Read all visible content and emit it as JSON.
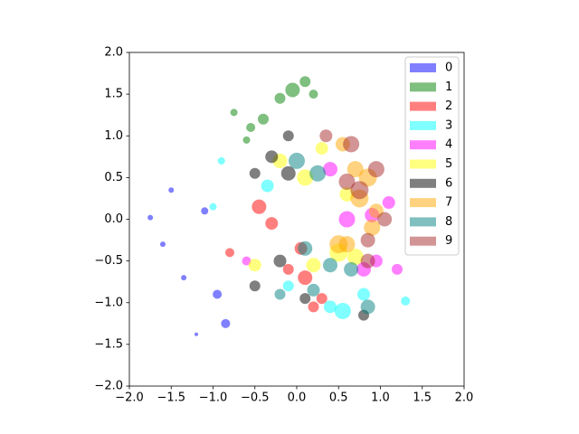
{
  "chart_data": {
    "type": "scatter",
    "xlim": [
      -2,
      2
    ],
    "ylim": [
      -2,
      2
    ],
    "xticks": [
      {
        "value": -2,
        "label": "−2.0"
      },
      {
        "value": -1.5,
        "label": "−1.5"
      },
      {
        "value": -1,
        "label": "−1.0"
      },
      {
        "value": -0.5,
        "label": "−0.5"
      },
      {
        "value": 0,
        "label": "0.0"
      },
      {
        "value": 0.5,
        "label": "0.5"
      },
      {
        "value": 1,
        "label": "1.0"
      },
      {
        "value": 1.5,
        "label": "1.5"
      },
      {
        "value": 2,
        "label": "2.0"
      }
    ],
    "yticks": [
      {
        "value": -2,
        "label": "−2.0"
      },
      {
        "value": -1.5,
        "label": "−1.5"
      },
      {
        "value": -1,
        "label": "−1.0"
      },
      {
        "value": -0.5,
        "label": "−0.5"
      },
      {
        "value": 0,
        "label": "0.0"
      },
      {
        "value": 0.5,
        "label": "0.5"
      },
      {
        "value": 1,
        "label": "1.0"
      },
      {
        "value": 1.5,
        "label": "1.5"
      },
      {
        "value": 2,
        "label": "2.0"
      }
    ],
    "legend": "upper right",
    "series": [
      {
        "name": "0",
        "color": "#0000ff",
        "x": [
          -1.75,
          -1.6,
          -1.5,
          -1.35,
          -1.2,
          -0.95,
          -0.85,
          -1.1
        ],
        "y": [
          0.02,
          -0.3,
          0.35,
          -0.7,
          -1.38,
          -0.9,
          -1.25,
          0.1
        ],
        "sizes": [
          3,
          3,
          3,
          3,
          2,
          5,
          5,
          4
        ]
      },
      {
        "name": "1",
        "color": "#008000",
        "x": [
          -0.75,
          -0.55,
          -0.4,
          -0.2,
          -0.05,
          0.1,
          0.2,
          -0.6
        ],
        "y": [
          1.28,
          1.1,
          1.2,
          1.45,
          1.55,
          1.65,
          1.5,
          0.95
        ],
        "sizes": [
          4,
          5,
          6,
          6,
          8,
          6,
          5,
          4
        ]
      },
      {
        "name": "2",
        "color": "#ff0000",
        "x": [
          -0.45,
          -0.8,
          -0.3,
          0.1,
          0.2,
          0.3,
          -0.1,
          0.05
        ],
        "y": [
          0.15,
          -0.4,
          -0.05,
          -0.7,
          -1.05,
          -0.95,
          -0.6,
          -0.35
        ],
        "sizes": [
          8,
          5,
          7,
          8,
          6,
          6,
          6,
          7
        ]
      },
      {
        "name": "3",
        "color": "#00ffff",
        "x": [
          -0.9,
          -0.35,
          -0.1,
          0.55,
          0.8,
          1.3,
          0.4,
          -1.0
        ],
        "y": [
          0.7,
          0.4,
          -0.8,
          -1.1,
          -0.9,
          -0.98,
          -1.05,
          0.15
        ],
        "sizes": [
          4,
          7,
          6,
          9,
          7,
          5,
          7,
          4
        ]
      },
      {
        "name": "4",
        "color": "#ff00ff",
        "x": [
          0.6,
          0.8,
          0.95,
          1.1,
          1.2,
          0.4,
          0.9,
          -0.6
        ],
        "y": [
          0.0,
          -0.6,
          -0.5,
          0.2,
          -0.6,
          0.6,
          0.05,
          -0.5
        ],
        "sizes": [
          9,
          8,
          7,
          7,
          6,
          8,
          8,
          5
        ]
      },
      {
        "name": "5",
        "color": "#ffff00",
        "x": [
          0.3,
          0.1,
          -0.2,
          0.5,
          0.7,
          -0.5,
          0.2,
          0.6
        ],
        "y": [
          0.85,
          0.5,
          0.7,
          -0.4,
          -0.45,
          -0.55,
          -0.55,
          0.3
        ],
        "sizes": [
          7,
          9,
          8,
          10,
          9,
          7,
          8,
          8
        ]
      },
      {
        "name": "6",
        "color": "#000000",
        "x": [
          -0.3,
          -0.5,
          -0.1,
          0.1,
          -0.2,
          -0.5,
          0.8,
          -0.1
        ],
        "y": [
          0.75,
          0.55,
          0.55,
          -0.95,
          -0.5,
          -0.8,
          -1.15,
          1.0
        ],
        "sizes": [
          7,
          6,
          8,
          6,
          7,
          6,
          6,
          6
        ]
      },
      {
        "name": "7",
        "color": "#ffa500",
        "x": [
          0.55,
          0.7,
          0.85,
          0.9,
          0.75,
          0.6,
          0.5,
          0.95
        ],
        "y": [
          0.9,
          0.6,
          0.5,
          -0.1,
          0.25,
          -0.3,
          -0.3,
          0.1
        ],
        "sizes": [
          8,
          9,
          10,
          9,
          10,
          9,
          10,
          8
        ]
      },
      {
        "name": "8",
        "color": "#008080",
        "x": [
          0.25,
          0.4,
          0.0,
          0.65,
          0.85,
          -0.2,
          0.1,
          0.2
        ],
        "y": [
          0.55,
          -0.55,
          0.7,
          -0.6,
          -1.05,
          -0.9,
          -0.35,
          -0.85
        ],
        "sizes": [
          9,
          8,
          9,
          8,
          8,
          6,
          8,
          7
        ]
      },
      {
        "name": "9",
        "color": "#a52a2a",
        "x": [
          0.65,
          0.75,
          0.95,
          1.05,
          0.85,
          0.6,
          0.35,
          0.85
        ],
        "y": [
          0.9,
          0.35,
          0.6,
          0.0,
          -0.25,
          0.45,
          1.0,
          -0.5
        ],
        "sizes": [
          9,
          10,
          9,
          8,
          8,
          9,
          7,
          8
        ]
      }
    ]
  }
}
